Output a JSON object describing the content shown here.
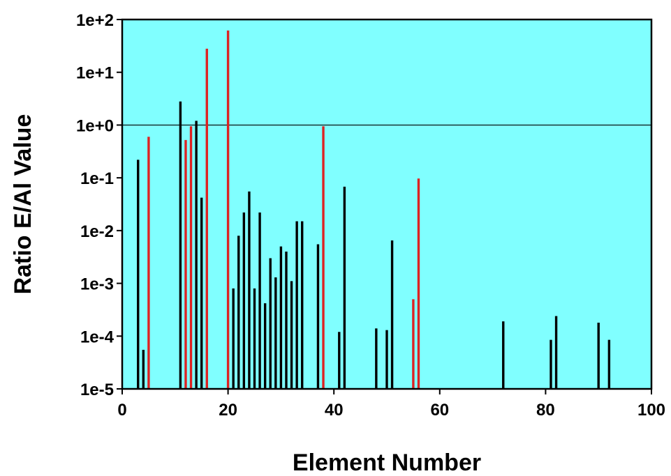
{
  "chart_data": {
    "type": "bar",
    "title": "",
    "xlabel": "Element Number",
    "ylabel": "Ratio E/Al Value",
    "x_scale": "linear",
    "y_scale": "log",
    "xlim": [
      0,
      100
    ],
    "ylim": [
      1e-05,
      100
    ],
    "x_ticks": [
      0,
      20,
      40,
      60,
      80,
      100
    ],
    "y_ticks": [
      {
        "value": 1e-05,
        "label": "1e-5"
      },
      {
        "value": 0.0001,
        "label": "1e-4"
      },
      {
        "value": 0.001,
        "label": "1e-3"
      },
      {
        "value": 0.01,
        "label": "1e-2"
      },
      {
        "value": 0.1,
        "label": "1e-1"
      },
      {
        "value": 1,
        "label": "1e+0"
      },
      {
        "value": 10,
        "label": "1e+1"
      },
      {
        "value": 100,
        "label": "1e+2"
      }
    ],
    "reference_line": 1,
    "grid": false,
    "legend": "none",
    "colors": {
      "background": "#80ffff",
      "default_bar": "#000000",
      "highlight_bar": "#dd2222"
    },
    "series": [
      {
        "color": "#000000",
        "points": [
          {
            "x": 3,
            "y": 0.22
          },
          {
            "x": 4,
            "y": 5.5e-05
          },
          {
            "x": 11,
            "y": 2.8
          },
          {
            "x": 14,
            "y": 1.2
          },
          {
            "x": 15,
            "y": 0.042
          },
          {
            "x": 21,
            "y": 0.0008
          },
          {
            "x": 22,
            "y": 0.008
          },
          {
            "x": 23,
            "y": 0.022
          },
          {
            "x": 24,
            "y": 0.055
          },
          {
            "x": 25,
            "y": 0.0008
          },
          {
            "x": 26,
            "y": 0.022
          },
          {
            "x": 27,
            "y": 0.00042
          },
          {
            "x": 28,
            "y": 0.003
          },
          {
            "x": 29,
            "y": 0.0013
          },
          {
            "x": 30,
            "y": 0.005
          },
          {
            "x": 31,
            "y": 0.004
          },
          {
            "x": 32,
            "y": 0.0011
          },
          {
            "x": 33,
            "y": 0.015
          },
          {
            "x": 34,
            "y": 0.015
          },
          {
            "x": 37,
            "y": 0.0055
          },
          {
            "x": 41,
            "y": 0.00012
          },
          {
            "x": 42,
            "y": 0.068
          },
          {
            "x": 48,
            "y": 0.00014
          },
          {
            "x": 50,
            "y": 0.00013
          },
          {
            "x": 51,
            "y": 0.0065
          },
          {
            "x": 72,
            "y": 0.00019
          },
          {
            "x": 81,
            "y": 8.5e-05
          },
          {
            "x": 82,
            "y": 0.00024
          },
          {
            "x": 90,
            "y": 0.00018
          },
          {
            "x": 92,
            "y": 8.5e-05
          }
        ]
      },
      {
        "color": "#dd2222",
        "points": [
          {
            "x": 5,
            "y": 0.6
          },
          {
            "x": 12,
            "y": 0.52
          },
          {
            "x": 13,
            "y": 0.95
          },
          {
            "x": 16,
            "y": 28
          },
          {
            "x": 20,
            "y": 62
          },
          {
            "x": 38,
            "y": 0.95
          },
          {
            "x": 55,
            "y": 0.0005
          },
          {
            "x": 56,
            "y": 0.097
          }
        ]
      }
    ]
  }
}
